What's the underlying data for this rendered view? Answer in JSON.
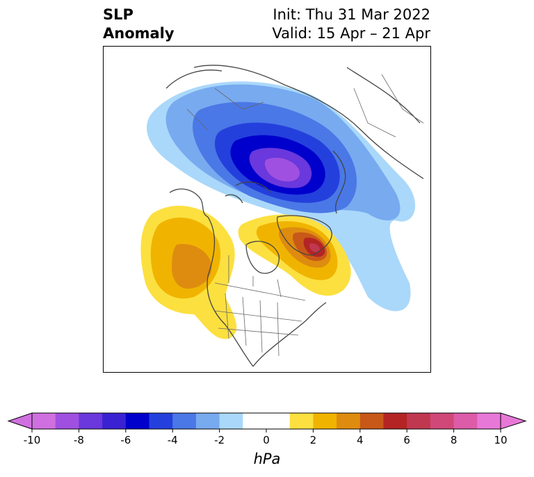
{
  "title": {
    "left_line1": "SLP",
    "left_line2": "Anomaly",
    "right_line1": "Init: Thu 31 Mar 2022",
    "right_line2": "Valid: 15 Apr – 21 Apr"
  },
  "colorbar": {
    "unit": "hPa",
    "min": -10,
    "max": 10,
    "ticks": [
      "-10",
      "-8",
      "-6",
      "-4",
      "-2",
      "0",
      "2",
      "4",
      "6",
      "8",
      "10"
    ],
    "bins": [
      {
        "from": -10,
        "to": -9,
        "color": "#d070e0"
      },
      {
        "from": -9,
        "to": -8,
        "color": "#a050e0"
      },
      {
        "from": -8,
        "to": -7,
        "color": "#6a38dc"
      },
      {
        "from": -7,
        "to": -6,
        "color": "#3a22d2"
      },
      {
        "from": -6,
        "to": -5,
        "color": "#0000cc"
      },
      {
        "from": -5,
        "to": -4,
        "color": "#2440dc"
      },
      {
        "from": -4,
        "to": -3,
        "color": "#4a78e6"
      },
      {
        "from": -3,
        "to": -2,
        "color": "#78aaf0"
      },
      {
        "from": -2,
        "to": -1,
        "color": "#aad8fa"
      },
      {
        "from": -1,
        "to": 1,
        "color": "#ffffff"
      },
      {
        "from": 1,
        "to": 2,
        "color": "#fce040"
      },
      {
        "from": 2,
        "to": 3,
        "color": "#f0b400"
      },
      {
        "from": 3,
        "to": 4,
        "color": "#de8c10"
      },
      {
        "from": 4,
        "to": 5,
        "color": "#c85818"
      },
      {
        "from": 5,
        "to": 6,
        "color": "#b42424"
      },
      {
        "from": 6,
        "to": 7,
        "color": "#c03850"
      },
      {
        "from": 7,
        "to": 8,
        "color": "#d04878"
      },
      {
        "from": 8,
        "to": 9,
        "color": "#dc5ca8"
      },
      {
        "from": 9,
        "to": 10,
        "color": "#e878d8"
      }
    ],
    "extend_low_color": "#d070e0",
    "extend_high_color": "#e878d8"
  },
  "map_colors": {
    "coast": "#444444",
    "border": "#666666"
  }
}
